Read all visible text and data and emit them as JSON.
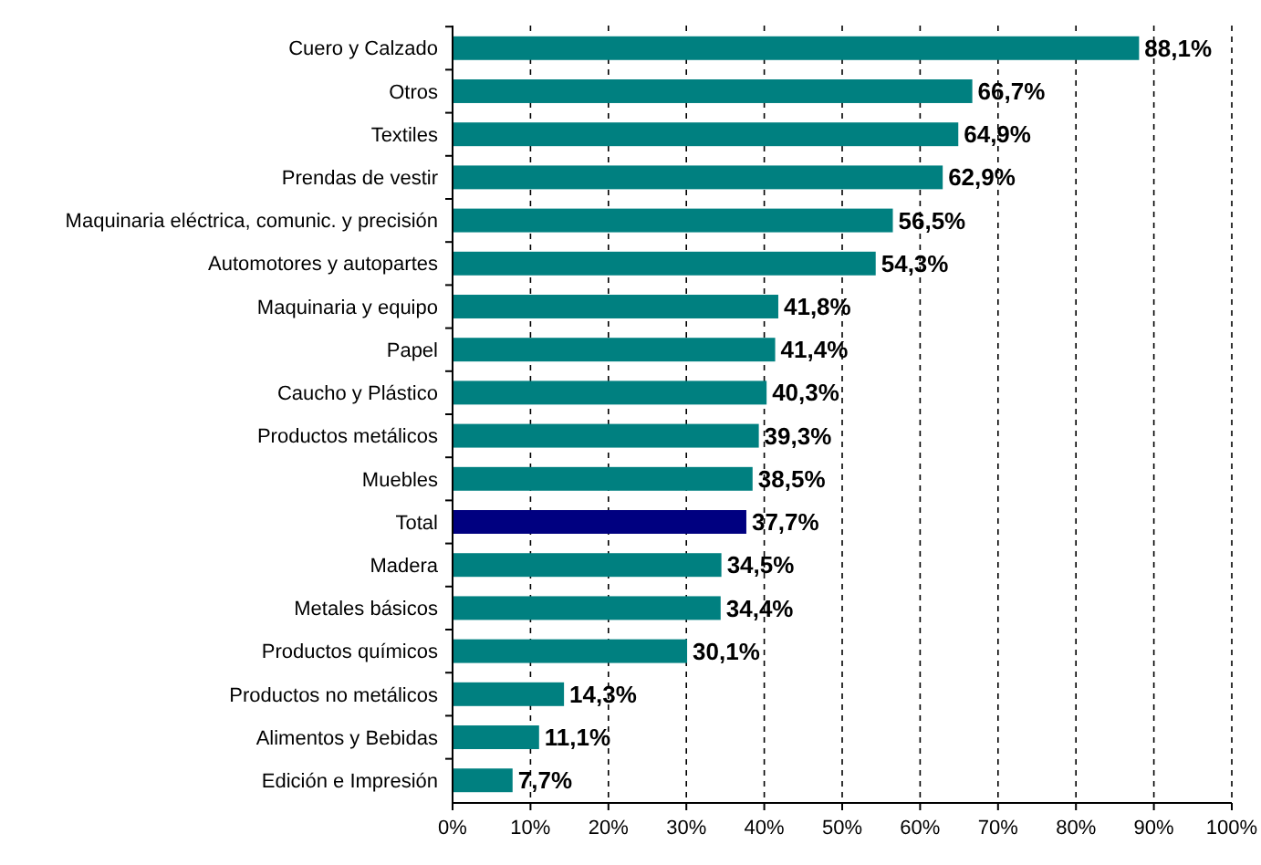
{
  "chart_data": {
    "type": "bar",
    "orientation": "horizontal",
    "categories": [
      "Cuero y Calzado",
      "Otros",
      "Textiles",
      "Prendas de vestir",
      "Maquinaria eléctrica, comunic. y precisión",
      "Automotores y autopartes",
      "Maquinaria y equipo",
      "Papel",
      "Caucho y Plástico",
      "Productos metálicos",
      "Muebles",
      "Total",
      "Madera",
      "Metales básicos",
      "Productos químicos",
      "Productos no metálicos",
      "Alimentos y Bebidas",
      "Edición e Impresión"
    ],
    "values": [
      88.1,
      66.7,
      64.9,
      62.9,
      56.5,
      54.3,
      41.8,
      41.4,
      40.3,
      39.3,
      38.5,
      37.7,
      34.5,
      34.4,
      30.1,
      14.3,
      11.1,
      7.7
    ],
    "value_labels": [
      "88,1%",
      "66,7%",
      "64,9%",
      "62,9%",
      "56,5%",
      "54,3%",
      "41,8%",
      "41,4%",
      "40,3%",
      "39,3%",
      "38,5%",
      "37,7%",
      "34,5%",
      "34,4%",
      "30,1%",
      "14,3%",
      "11,1%",
      "7,7%"
    ],
    "colors": [
      "#008080",
      "#008080",
      "#008080",
      "#008080",
      "#008080",
      "#008080",
      "#008080",
      "#008080",
      "#008080",
      "#008080",
      "#008080",
      "#000080",
      "#008080",
      "#008080",
      "#008080",
      "#008080",
      "#008080",
      "#008080"
    ],
    "xlim": [
      0,
      100
    ],
    "xticks": [
      {
        "value": 0,
        "label": "0%"
      },
      {
        "value": 10,
        "label": "10%"
      },
      {
        "value": 20,
        "label": "20%"
      },
      {
        "value": 30,
        "label": "30%"
      },
      {
        "value": 40,
        "label": "40%"
      },
      {
        "value": 50,
        "label": "50%"
      },
      {
        "value": 60,
        "label": "60%"
      },
      {
        "value": 70,
        "label": "70%"
      },
      {
        "value": 80,
        "label": "80%"
      },
      {
        "value": 90,
        "label": "90%"
      },
      {
        "value": 100,
        "label": "100%"
      }
    ],
    "grid": "x"
  }
}
